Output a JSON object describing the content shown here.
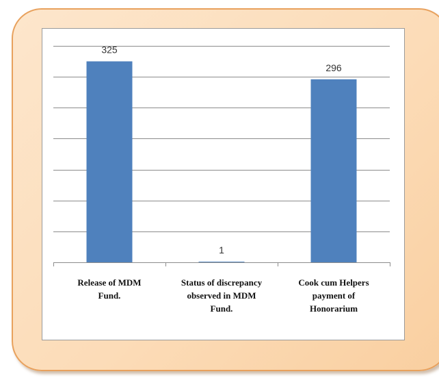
{
  "chart_data": {
    "type": "bar",
    "categories": [
      "Release of MDM Fund.",
      "Status of discrepancy observed in MDM Fund.",
      "Cook cum Helpers payment of Honorarium"
    ],
    "category_lines": [
      [
        "Release of MDM",
        "Fund."
      ],
      [
        "Status of discrepancy",
        "observed in MDM",
        "Fund."
      ],
      [
        "Cook cum Helpers",
        "payment of",
        "Honorarium"
      ]
    ],
    "values": [
      325,
      1,
      296
    ],
    "data_labels": [
      "325",
      "1",
      "296"
    ],
    "ylim": [
      0,
      350
    ],
    "gridline_step": 50,
    "grid": true,
    "bar_color": "#4f81bd",
    "title": "",
    "xlabel": "",
    "ylabel": ""
  }
}
